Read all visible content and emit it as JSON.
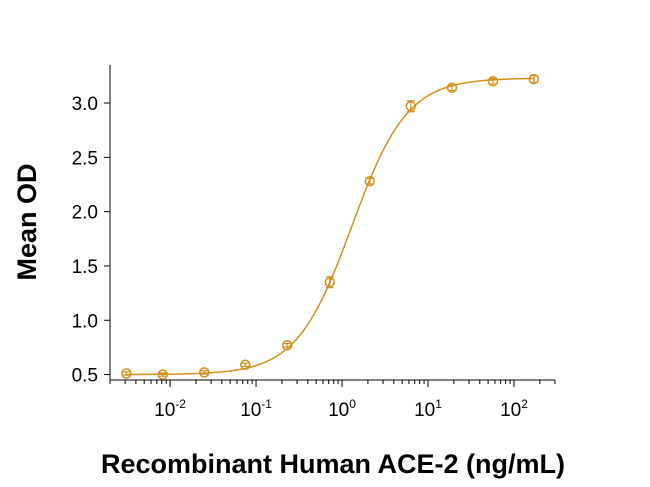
{
  "chart_data": {
    "type": "scatter",
    "title": "",
    "xlabel": "Recombinant Human ACE-2 (ng/mL)",
    "ylabel": "Mean OD",
    "x_scale": "log",
    "xlim": [
      0.002,
      300
    ],
    "ylim": [
      0.45,
      3.35
    ],
    "x_ticks": [
      {
        "value": 0.01,
        "base": "10",
        "exp": "-2"
      },
      {
        "value": 0.1,
        "base": "10",
        "exp": "-1"
      },
      {
        "value": 1,
        "base": "10",
        "exp": "0"
      },
      {
        "value": 10,
        "base": "10",
        "exp": "1"
      },
      {
        "value": 100,
        "base": "10",
        "exp": "2"
      }
    ],
    "y_ticks": [
      "0.5",
      "1.0",
      "1.5",
      "2.0",
      "2.5",
      "3.0"
    ],
    "grid": false,
    "color": "#d4901c",
    "series": [
      {
        "name": "",
        "x": [
          0.0031,
          0.0082,
          0.025,
          0.075,
          0.23,
          0.72,
          2.1,
          6.3,
          19,
          57,
          170
        ],
        "y": [
          0.51,
          0.5,
          0.52,
          0.59,
          0.77,
          1.35,
          2.28,
          2.97,
          3.14,
          3.2,
          3.22
        ],
        "err": [
          0.015,
          0.015,
          0.015,
          0.015,
          0.015,
          0.05,
          0.025,
          0.05,
          0.025,
          0.025,
          0.03
        ]
      }
    ],
    "fit_curve": {
      "bottom": 0.5,
      "top": 3.23,
      "ec50": 1.3,
      "hill": 1.35
    }
  }
}
